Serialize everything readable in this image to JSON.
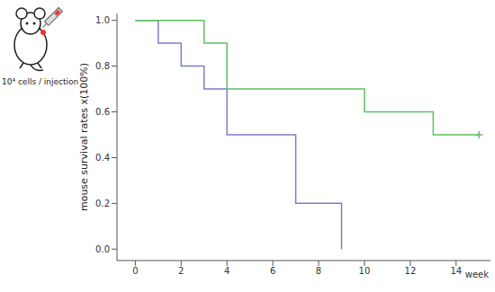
{
  "chart_data": {
    "type": "line",
    "annotation": "10⁴ cells / injection",
    "x_label": "week",
    "y_label": "mouse survival rates x(100%)",
    "xlim": [
      -0.8,
      15.5
    ],
    "xticks": [
      0,
      2,
      4,
      6,
      8,
      10,
      12,
      14
    ],
    "ylim": [
      -0.05,
      1.03
    ],
    "yticks": [
      {
        "value": 0,
        "label": "0.0"
      },
      {
        "value": 0.2,
        "label": "0.2"
      },
      {
        "value": 0.4,
        "label": "0.4"
      },
      {
        "value": 0.6,
        "label": "0.6"
      },
      {
        "value": 0.8,
        "label": "0.8"
      },
      {
        "value": 1,
        "label": "1.0"
      }
    ],
    "grid": false,
    "line_style": "step",
    "series": [
      {
        "color": "#7b7fc4",
        "x": [
          0,
          1,
          2,
          3,
          4,
          7,
          9
        ],
        "values": [
          1,
          0.9,
          0.8,
          0.7,
          0.5,
          0.2,
          0
        ]
      },
      {
        "color": "#5fbf63",
        "x": [
          0,
          3,
          4,
          10,
          13,
          15
        ],
        "values": [
          1,
          0.9,
          0.7,
          0.6,
          0.5,
          0.5
        ],
        "censored_x": [
          15
        ]
      }
    ]
  }
}
